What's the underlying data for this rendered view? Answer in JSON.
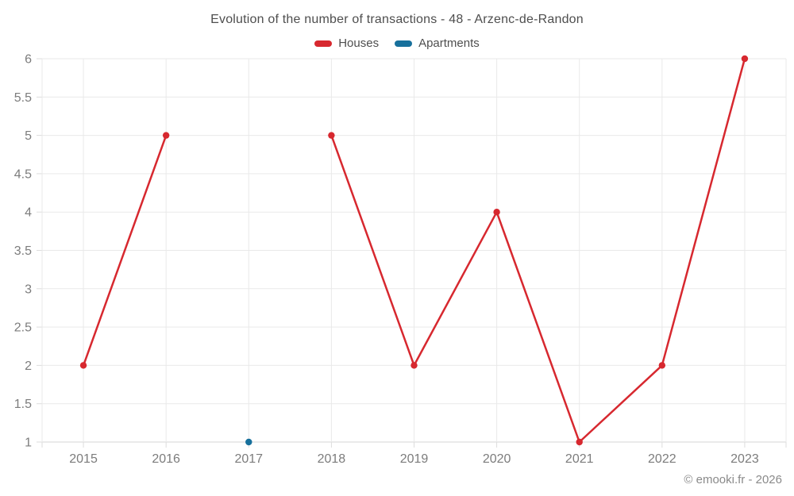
{
  "page": {
    "title": "Evolution of the number of transactions - 48 - Arzenc-de-Randon",
    "footer": "© emooki.fr - 2026",
    "background_color": "#ffffff"
  },
  "legend": {
    "items": [
      {
        "label": "Houses",
        "color": "#d7282f"
      },
      {
        "label": "Apartments",
        "color": "#17709c"
      }
    ]
  },
  "chart_data": {
    "type": "line",
    "title": "Evolution of the number of transactions - 48 - Arzenc-de-Randon",
    "categories": [
      "2015",
      "2016",
      "2017",
      "2018",
      "2019",
      "2020",
      "2021",
      "2022",
      "2023"
    ],
    "series": [
      {
        "name": "Houses",
        "color": "#d7282f",
        "values": [
          2,
          5,
          null,
          5,
          2,
          4,
          1,
          2,
          6
        ]
      },
      {
        "name": "Apartments",
        "color": "#17709c",
        "values": [
          null,
          null,
          1,
          null,
          null,
          null,
          null,
          null,
          null
        ]
      }
    ],
    "xlabel": "",
    "ylabel": "",
    "ylim": [
      1,
      6
    ],
    "ytick_step": 0.5,
    "grid": true,
    "legend_position": "top",
    "marker_radius": 4.2,
    "line_width": 2.5,
    "colors": {
      "grid": "#e9e9e9",
      "axis_line": "#d6d6d6",
      "tick": "#dddddd",
      "axis_labels": "#7c7c7c"
    }
  }
}
